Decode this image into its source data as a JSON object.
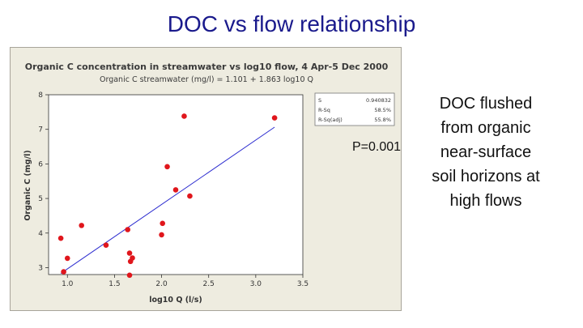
{
  "slide": {
    "title": "DOC vs flow relationship",
    "p_value": "P=0.001",
    "note_lines": [
      "DOC flushed",
      "from organic",
      "near-surface",
      "soil horizons at",
      "high flows"
    ]
  },
  "chart_data": {
    "type": "scatter",
    "title": "Organic C concentration in streamwater vs log10 flow, 4 Apr-5 Dec 2000",
    "subtitle": "Organic C streamwater (mg/l) = 1.101 + 1.863 log10 Q",
    "xlabel": "log10 Q (l/s)",
    "ylabel": "Organic C (mg/l)",
    "xlim": [
      0.8,
      3.5
    ],
    "ylim": [
      2.8,
      8.0
    ],
    "xticks": [
      "1.0",
      "1.5",
      "2.0",
      "2.5",
      "3.0",
      "3.5"
    ],
    "yticks": [
      "3",
      "4",
      "5",
      "6",
      "7",
      "8"
    ],
    "regression": {
      "intercept": 1.101,
      "slope": 1.863,
      "x_range": [
        0.93,
        3.2
      ]
    },
    "stats": [
      {
        "label": "S",
        "value": "0.940832"
      },
      {
        "label": "R-Sq",
        "value": "58.5%"
      },
      {
        "label": "R-Sq(adj)",
        "value": "55.8%"
      }
    ],
    "points": [
      {
        "x": 0.93,
        "y": 3.85
      },
      {
        "x": 0.96,
        "y": 2.88
      },
      {
        "x": 1.0,
        "y": 3.27
      },
      {
        "x": 1.15,
        "y": 4.22
      },
      {
        "x": 1.41,
        "y": 3.65
      },
      {
        "x": 1.64,
        "y": 4.1
      },
      {
        "x": 1.66,
        "y": 2.78
      },
      {
        "x": 1.66,
        "y": 3.42
      },
      {
        "x": 1.67,
        "y": 3.18
      },
      {
        "x": 1.69,
        "y": 3.28
      },
      {
        "x": 2.0,
        "y": 3.95
      },
      {
        "x": 2.01,
        "y": 4.28
      },
      {
        "x": 2.06,
        "y": 5.92
      },
      {
        "x": 2.15,
        "y": 5.25
      },
      {
        "x": 2.24,
        "y": 7.38
      },
      {
        "x": 2.3,
        "y": 5.07
      },
      {
        "x": 3.2,
        "y": 7.33
      }
    ],
    "grid": false,
    "colors": {
      "points": "#e0161c",
      "fit_line": "#2b2bcf",
      "frame": "#eeece0",
      "plot_bg": "#ffffff"
    }
  }
}
